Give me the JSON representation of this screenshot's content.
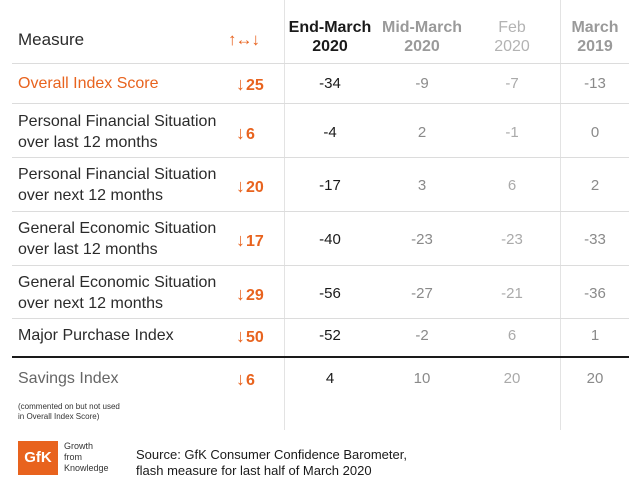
{
  "header": {
    "measure": "Measure",
    "change_icon": "↑↔↓",
    "columns": [
      {
        "line1": "End-March",
        "line2": "2020",
        "color": "#1a1a1a",
        "bold": true
      },
      {
        "line1": "Mid-March",
        "line2": "2020",
        "color": "#9a9a9a",
        "bold": true
      },
      {
        "line1": "Feb",
        "line2": "2020",
        "color": "#b3b3b3",
        "bold": false
      },
      {
        "line1": "March",
        "line2": "2019",
        "color": "#9a9a9a",
        "bold": true
      }
    ]
  },
  "rows": [
    {
      "line1": "Overall Index Score",
      "line2": "",
      "change_arrow": "↓",
      "change": "25",
      "values": [
        "-34",
        "-9",
        "-7",
        "-13"
      ],
      "highlight": true
    },
    {
      "line1": "Personal Financial Situation",
      "line2": "over last 12 months",
      "change_arrow": "↓",
      "change": "6",
      "values": [
        "-4",
        "2",
        "-1",
        "0"
      ],
      "highlight": false
    },
    {
      "line1": "Personal Financial Situation",
      "line2": "over next 12 months",
      "change_arrow": "↓",
      "change": "20",
      "values": [
        "-17",
        "3",
        "6",
        "2"
      ],
      "highlight": false
    },
    {
      "line1": "General Economic Situation",
      "line2": "over last 12 months",
      "change_arrow": "↓",
      "change": "17",
      "values": [
        "-40",
        "-23",
        "-23",
        "-33"
      ],
      "highlight": false
    },
    {
      "line1": "General Economic Situation",
      "line2": "over next 12 months",
      "change_arrow": "↓",
      "change": "29",
      "values": [
        "-56",
        "-27",
        "-21",
        "-36"
      ],
      "highlight": false
    },
    {
      "line1": "Major Purchase Index",
      "line2": "",
      "change_arrow": "↓",
      "change": "50",
      "values": [
        "-52",
        "-2",
        "6",
        "1"
      ],
      "highlight": false
    },
    {
      "line1": "Savings Index",
      "line2": "",
      "change_arrow": "↓",
      "change": "6",
      "values": [
        "4",
        "10",
        "20",
        "20"
      ],
      "highlight": false,
      "muted": true
    }
  ],
  "savings_note": {
    "line1": "(commented on but not used",
    "line2": "in Overall Index Score)"
  },
  "footer": {
    "logo": "GfK",
    "tagline": [
      "Growth",
      "from",
      "Knowledge"
    ],
    "source_line1": "Source: GfK Consumer Confidence Barometer,",
    "source_line2": "flash measure for last half of March 2020"
  },
  "colors": {
    "accent": "#e8631e",
    "value_dark": "#1a1a1a",
    "value_mid": "#8a8a8a",
    "value_light": "#aaaaaa"
  },
  "chart_data": {
    "type": "table",
    "columns": [
      "Measure",
      "↑↔↓",
      "End-March 2020",
      "Mid-March 2020",
      "Feb 2020",
      "March 2019"
    ],
    "rows": [
      [
        "Overall Index Score",
        "↓25",
        -34,
        -9,
        -7,
        -13
      ],
      [
        "Personal Financial Situation over last 12 months",
        "↓6",
        -4,
        2,
        -1,
        0
      ],
      [
        "Personal Financial Situation over next 12 months",
        "↓20",
        -17,
        3,
        6,
        2
      ],
      [
        "General Economic Situation over last 12 months",
        "↓17",
        -40,
        -23,
        -23,
        -33
      ],
      [
        "General Economic Situation over next 12 months",
        "↓29",
        -56,
        -27,
        -21,
        -36
      ],
      [
        "Major Purchase Index",
        "↓50",
        -52,
        -2,
        6,
        1
      ],
      [
        "Savings Index",
        "↓6",
        4,
        10,
        20,
        20
      ]
    ]
  }
}
